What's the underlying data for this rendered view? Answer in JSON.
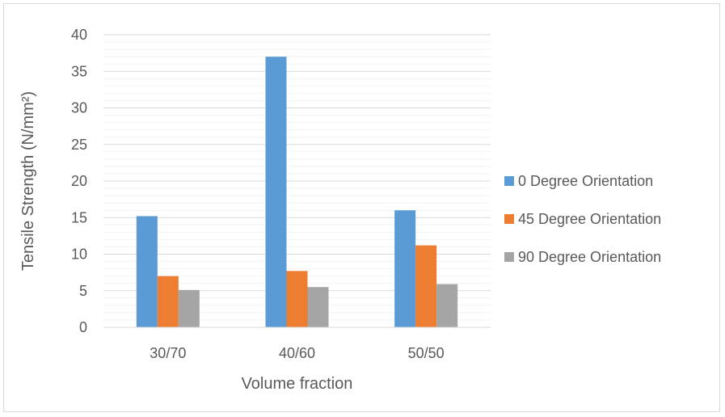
{
  "chart_data": {
    "type": "bar",
    "categories": [
      "30/70",
      "40/60",
      "50/50"
    ],
    "series": [
      {
        "name": "0 Degree Orientation",
        "color": "#5b9bd5",
        "values": [
          15.2,
          37,
          16
        ]
      },
      {
        "name": "45 Degree Orientation",
        "color": "#ed7d31",
        "values": [
          7,
          7.7,
          11.2
        ]
      },
      {
        "name": "90 Degree Orientation",
        "color": "#a5a5a5",
        "values": [
          5.1,
          5.5,
          5.9
        ]
      }
    ],
    "title": "",
    "xlabel": "Volume fraction",
    "ylabel": "Tensile Strength (N/mm²)",
    "ylim": [
      0,
      40
    ],
    "yticks": [
      "0",
      "5",
      "10",
      "15",
      "20",
      "25",
      "30",
      "35",
      "40"
    ],
    "major_step": 5,
    "minor_step": 1,
    "grid": true,
    "legend_position": "right"
  }
}
